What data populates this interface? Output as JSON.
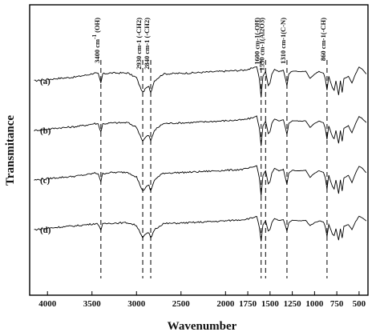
{
  "chart_data": {
    "type": "line",
    "xlabel": "Wavenumber",
    "ylabel": "Transmitance",
    "x_reversed": true,
    "xlim": [
      4200,
      400
    ],
    "xticks": [
      4000,
      3500,
      3000,
      2500,
      2000,
      1750,
      1500,
      1250,
      1000,
      750,
      500
    ],
    "grid": false,
    "series": [
      {
        "name": "(a)",
        "points": [
          [
            4150,
            0.55
          ],
          [
            3900,
            0.6
          ],
          [
            3700,
            0.63
          ],
          [
            3550,
            0.68
          ],
          [
            3470,
            0.72
          ],
          [
            3430,
            0.7
          ],
          [
            3400,
            0.5
          ],
          [
            3380,
            0.7
          ],
          [
            3300,
            0.72
          ],
          [
            3100,
            0.72
          ],
          [
            3000,
            0.62
          ],
          [
            2960,
            0.42
          ],
          [
            2930,
            0.3
          ],
          [
            2890,
            0.4
          ],
          [
            2860,
            0.42
          ],
          [
            2840,
            0.3
          ],
          [
            2800,
            0.55
          ],
          [
            2700,
            0.7
          ],
          [
            2400,
            0.72
          ],
          [
            2200,
            0.74
          ],
          [
            2000,
            0.76
          ],
          [
            1800,
            0.78
          ],
          [
            1700,
            0.82
          ],
          [
            1650,
            0.86
          ],
          [
            1620,
            0.6
          ],
          [
            1600,
            0.2
          ],
          [
            1580,
            0.65
          ],
          [
            1550,
            0.75
          ],
          [
            1520,
            0.45
          ],
          [
            1500,
            0.5
          ],
          [
            1480,
            0.7
          ],
          [
            1450,
            0.8
          ],
          [
            1400,
            0.75
          ],
          [
            1350,
            0.78
          ],
          [
            1310,
            0.45
          ],
          [
            1290,
            0.7
          ],
          [
            1250,
            0.76
          ],
          [
            1150,
            0.75
          ],
          [
            1100,
            0.76
          ],
          [
            1050,
            0.6
          ],
          [
            1000,
            0.7
          ],
          [
            950,
            0.75
          ],
          [
            900,
            0.72
          ],
          [
            880,
            0.6
          ],
          [
            860,
            0.35
          ],
          [
            840,
            0.65
          ],
          [
            800,
            0.4
          ],
          [
            780,
            0.35
          ],
          [
            760,
            0.55
          ],
          [
            730,
            0.25
          ],
          [
            710,
            0.55
          ],
          [
            690,
            0.3
          ],
          [
            670,
            0.6
          ],
          [
            620,
            0.65
          ],
          [
            580,
            0.5
          ],
          [
            540,
            0.7
          ],
          [
            500,
            0.85
          ],
          [
            460,
            0.8
          ],
          [
            420,
            0.7
          ]
        ]
      },
      {
        "name": "(b)",
        "points": [
          [
            4150,
            0.55
          ],
          [
            3900,
            0.6
          ],
          [
            3700,
            0.63
          ],
          [
            3550,
            0.67
          ],
          [
            3470,
            0.7
          ],
          [
            3430,
            0.69
          ],
          [
            3400,
            0.52
          ],
          [
            3380,
            0.69
          ],
          [
            3300,
            0.71
          ],
          [
            3100,
            0.72
          ],
          [
            3000,
            0.62
          ],
          [
            2960,
            0.45
          ],
          [
            2930,
            0.32
          ],
          [
            2890,
            0.42
          ],
          [
            2860,
            0.44
          ],
          [
            2840,
            0.32
          ],
          [
            2800,
            0.55
          ],
          [
            2700,
            0.7
          ],
          [
            2400,
            0.72
          ],
          [
            2200,
            0.74
          ],
          [
            2000,
            0.76
          ],
          [
            1800,
            0.78
          ],
          [
            1700,
            0.82
          ],
          [
            1650,
            0.86
          ],
          [
            1620,
            0.6
          ],
          [
            1600,
            0.22
          ],
          [
            1580,
            0.65
          ],
          [
            1550,
            0.75
          ],
          [
            1520,
            0.48
          ],
          [
            1500,
            0.52
          ],
          [
            1480,
            0.7
          ],
          [
            1450,
            0.8
          ],
          [
            1400,
            0.75
          ],
          [
            1350,
            0.78
          ],
          [
            1310,
            0.47
          ],
          [
            1290,
            0.7
          ],
          [
            1250,
            0.76
          ],
          [
            1150,
            0.75
          ],
          [
            1100,
            0.76
          ],
          [
            1050,
            0.62
          ],
          [
            1000,
            0.7
          ],
          [
            950,
            0.75
          ],
          [
            900,
            0.72
          ],
          [
            880,
            0.6
          ],
          [
            860,
            0.36
          ],
          [
            840,
            0.65
          ],
          [
            800,
            0.42
          ],
          [
            780,
            0.37
          ],
          [
            760,
            0.55
          ],
          [
            730,
            0.27
          ],
          [
            710,
            0.55
          ],
          [
            690,
            0.32
          ],
          [
            670,
            0.6
          ],
          [
            620,
            0.65
          ],
          [
            580,
            0.5
          ],
          [
            540,
            0.7
          ],
          [
            500,
            0.85
          ],
          [
            460,
            0.8
          ],
          [
            420,
            0.72
          ]
        ]
      },
      {
        "name": "(c)",
        "points": [
          [
            4150,
            0.55
          ],
          [
            3900,
            0.6
          ],
          [
            3700,
            0.63
          ],
          [
            3550,
            0.67
          ],
          [
            3470,
            0.7
          ],
          [
            3430,
            0.69
          ],
          [
            3400,
            0.52
          ],
          [
            3380,
            0.69
          ],
          [
            3300,
            0.71
          ],
          [
            3100,
            0.72
          ],
          [
            3000,
            0.62
          ],
          [
            2960,
            0.44
          ],
          [
            2930,
            0.31
          ],
          [
            2890,
            0.41
          ],
          [
            2860,
            0.43
          ],
          [
            2840,
            0.31
          ],
          [
            2800,
            0.55
          ],
          [
            2700,
            0.7
          ],
          [
            2400,
            0.72
          ],
          [
            2200,
            0.74
          ],
          [
            2000,
            0.76
          ],
          [
            1800,
            0.78
          ],
          [
            1700,
            0.82
          ],
          [
            1650,
            0.86
          ],
          [
            1620,
            0.6
          ],
          [
            1600,
            0.21
          ],
          [
            1580,
            0.65
          ],
          [
            1550,
            0.75
          ],
          [
            1520,
            0.47
          ],
          [
            1500,
            0.51
          ],
          [
            1480,
            0.7
          ],
          [
            1450,
            0.8
          ],
          [
            1400,
            0.75
          ],
          [
            1350,
            0.78
          ],
          [
            1310,
            0.46
          ],
          [
            1290,
            0.7
          ],
          [
            1250,
            0.76
          ],
          [
            1150,
            0.75
          ],
          [
            1100,
            0.76
          ],
          [
            1050,
            0.61
          ],
          [
            1000,
            0.7
          ],
          [
            950,
            0.75
          ],
          [
            900,
            0.72
          ],
          [
            880,
            0.6
          ],
          [
            860,
            0.36
          ],
          [
            840,
            0.65
          ],
          [
            800,
            0.41
          ],
          [
            780,
            0.36
          ],
          [
            760,
            0.55
          ],
          [
            730,
            0.26
          ],
          [
            710,
            0.55
          ],
          [
            690,
            0.31
          ],
          [
            670,
            0.6
          ],
          [
            620,
            0.65
          ],
          [
            580,
            0.5
          ],
          [
            540,
            0.7
          ],
          [
            500,
            0.85
          ],
          [
            460,
            0.8
          ],
          [
            420,
            0.71
          ]
        ]
      },
      {
        "name": "(d)",
        "points": [
          [
            4150,
            0.55
          ],
          [
            3900,
            0.6
          ],
          [
            3700,
            0.63
          ],
          [
            3550,
            0.66
          ],
          [
            3470,
            0.68
          ],
          [
            3430,
            0.67
          ],
          [
            3400,
            0.55
          ],
          [
            3380,
            0.67
          ],
          [
            3300,
            0.69
          ],
          [
            3100,
            0.7
          ],
          [
            3000,
            0.64
          ],
          [
            2960,
            0.5
          ],
          [
            2930,
            0.38
          ],
          [
            2890,
            0.46
          ],
          [
            2860,
            0.48
          ],
          [
            2840,
            0.36
          ],
          [
            2800,
            0.55
          ],
          [
            2700,
            0.68
          ],
          [
            2400,
            0.7
          ],
          [
            2200,
            0.72
          ],
          [
            2000,
            0.74
          ],
          [
            1800,
            0.77
          ],
          [
            1700,
            0.8
          ],
          [
            1650,
            0.84
          ],
          [
            1620,
            0.6
          ],
          [
            1600,
            0.3
          ],
          [
            1580,
            0.65
          ],
          [
            1550,
            0.74
          ],
          [
            1520,
            0.52
          ],
          [
            1500,
            0.55
          ],
          [
            1480,
            0.7
          ],
          [
            1450,
            0.79
          ],
          [
            1400,
            0.75
          ],
          [
            1350,
            0.77
          ],
          [
            1310,
            0.52
          ],
          [
            1290,
            0.7
          ],
          [
            1250,
            0.75
          ],
          [
            1150,
            0.74
          ],
          [
            1100,
            0.75
          ],
          [
            1050,
            0.64
          ],
          [
            1000,
            0.7
          ],
          [
            950,
            0.74
          ],
          [
            900,
            0.72
          ],
          [
            880,
            0.62
          ],
          [
            860,
            0.4
          ],
          [
            840,
            0.66
          ],
          [
            800,
            0.46
          ],
          [
            780,
            0.42
          ],
          [
            760,
            0.57
          ],
          [
            730,
            0.32
          ],
          [
            710,
            0.57
          ],
          [
            690,
            0.37
          ],
          [
            670,
            0.62
          ],
          [
            620,
            0.66
          ],
          [
            580,
            0.55
          ],
          [
            540,
            0.72
          ],
          [
            500,
            0.84
          ],
          [
            460,
            0.8
          ],
          [
            420,
            0.74
          ]
        ]
      }
    ],
    "markers": [
      {
        "x": 3400,
        "label": "3400 cm",
        "superscript": "-1",
        "suffix": " (OH)"
      },
      {
        "x": 2930,
        "label": "2930 cm-1 (-CH2)"
      },
      {
        "x": 2840,
        "label": "2840 cm-1 (-CH2)"
      },
      {
        "x": 1600,
        "label": "1600 cm-1(-OH)"
      },
      {
        "x": 1550,
        "label": "1550 cm-1(Al2O3)"
      },
      {
        "x": 1310,
        "label": "1310 cm-1(C-N)"
      },
      {
        "x": 860,
        "label": "860 cm-1(-CH)"
      }
    ]
  }
}
